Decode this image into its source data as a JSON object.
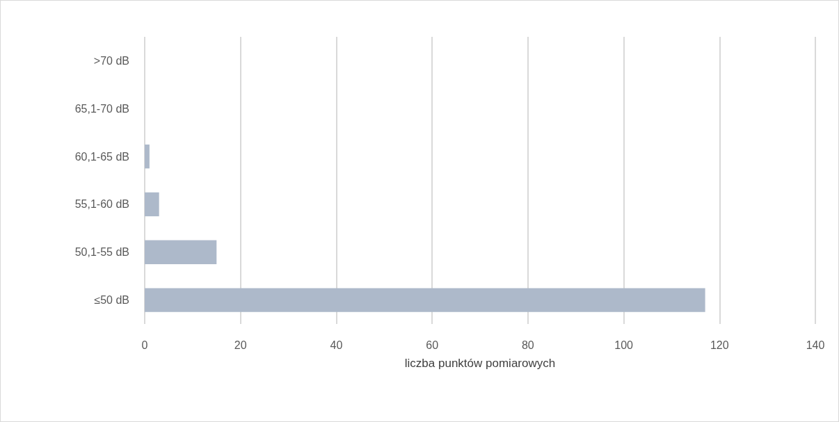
{
  "chart_data": {
    "type": "bar",
    "orientation": "horizontal",
    "xlabel": "liczba punktów pomiarowych",
    "categories": [
      ">70 dB",
      "65,1-70 dB",
      "60,1-65 dB",
      "55,1-60 dB",
      "50,1-55 dB",
      "≤50 dB"
    ],
    "values": [
      0,
      0,
      1,
      3,
      15,
      117
    ],
    "color": "#adb9ca",
    "xlim": [
      0,
      140
    ],
    "xticks": [
      0,
      20,
      40,
      60,
      80,
      100,
      120,
      140
    ],
    "grid": "x"
  }
}
